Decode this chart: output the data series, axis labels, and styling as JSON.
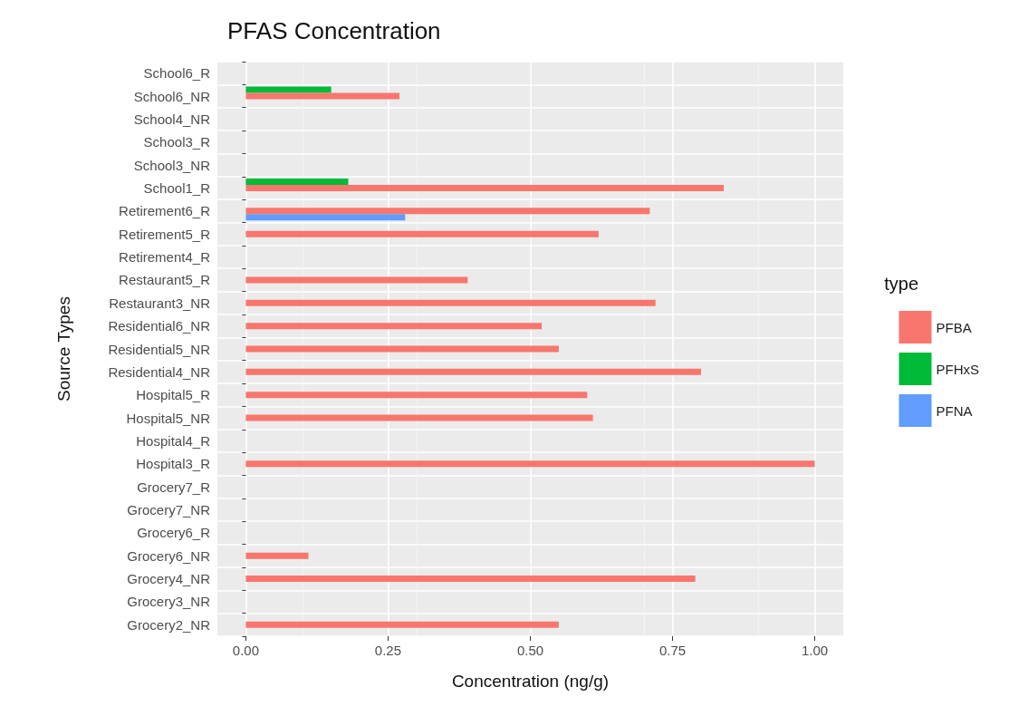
{
  "chart_data": {
    "type": "bar",
    "orientation": "horizontal",
    "title": "PFAS Concentration",
    "xlabel": "Concentration (ng/g)",
    "ylabel": "Source Types",
    "legend_title": "type",
    "legend": "right",
    "grid": true,
    "categories": [
      "School6_R",
      "School6_NR",
      "School4_NR",
      "School3_R",
      "School3_NR",
      "School1_R",
      "Retirement6_R",
      "Retirement5_R",
      "Retirement4_R",
      "Restaurant5_R",
      "Restaurant3_NR",
      "Residential6_NR",
      "Residential5_NR",
      "Residential4_NR",
      "Hospital5_R",
      "Hospital5_NR",
      "Hospital4_R",
      "Hospital3_R",
      "Grocery7_R",
      "Grocery7_NR",
      "Grocery6_R",
      "Grocery6_NR",
      "Grocery4_NR",
      "Grocery3_NR",
      "Grocery2_NR"
    ],
    "xlim": [
      -0.05,
      1.05
    ],
    "xticks": [
      {
        "value": 0,
        "label": "0.00"
      },
      {
        "value": 0.25,
        "label": "0.25"
      },
      {
        "value": 0.5,
        "label": "0.50"
      },
      {
        "value": 0.75,
        "label": "0.75"
      },
      {
        "value": 1,
        "label": "1.00"
      }
    ],
    "series": [
      {
        "name": "PFHxS",
        "color": "#00ba38",
        "values": [
          null,
          0.15,
          null,
          null,
          null,
          0.18,
          null,
          null,
          null,
          null,
          null,
          null,
          null,
          null,
          null,
          null,
          null,
          null,
          null,
          null,
          null,
          null,
          null,
          null,
          null
        ]
      },
      {
        "name": "PFBA",
        "color": "#f8766d",
        "values": [
          null,
          0.27,
          null,
          null,
          null,
          0.84,
          0.71,
          0.62,
          null,
          0.39,
          0.72,
          0.52,
          0.55,
          0.8,
          0.6,
          0.61,
          null,
          1.0,
          null,
          null,
          null,
          0.11,
          0.79,
          null,
          0.55
        ]
      },
      {
        "name": "PFNA",
        "color": "#619cff",
        "values": [
          null,
          null,
          null,
          null,
          null,
          null,
          0.28,
          null,
          null,
          null,
          null,
          null,
          null,
          null,
          null,
          null,
          null,
          null,
          null,
          null,
          null,
          null,
          null,
          null,
          null
        ]
      }
    ]
  }
}
